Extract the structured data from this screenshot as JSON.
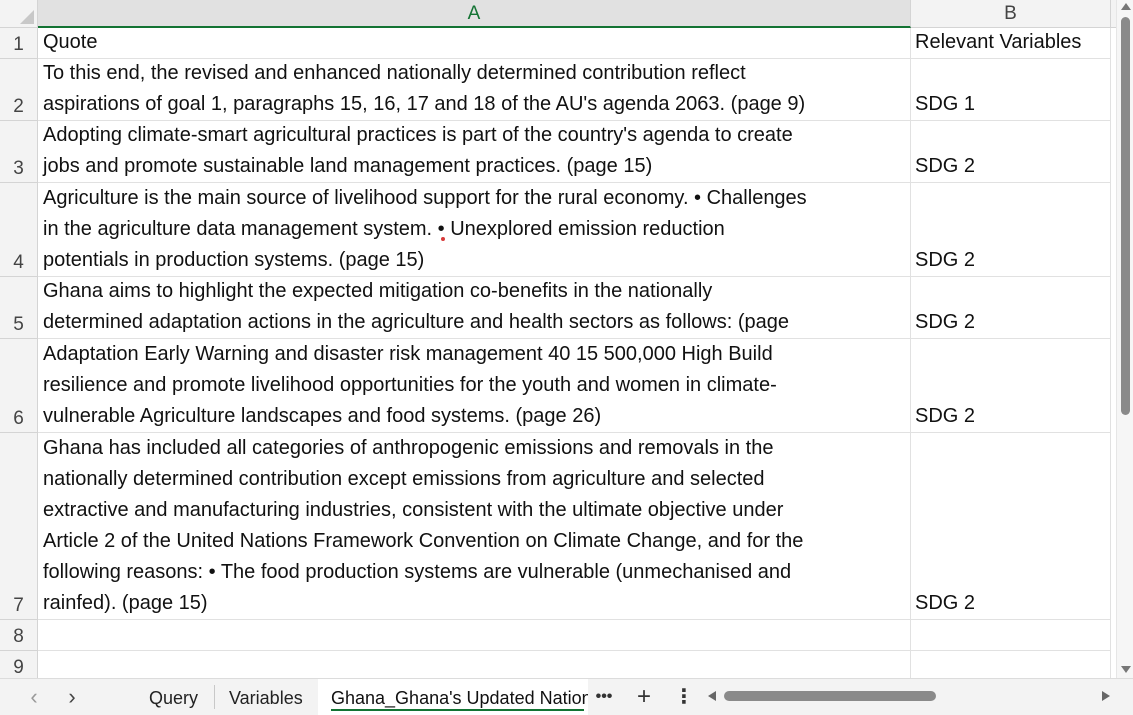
{
  "columns": [
    {
      "id": "A",
      "label": "A"
    },
    {
      "id": "B",
      "label": "B"
    }
  ],
  "rows": [
    {
      "num": "1",
      "a": "Quote",
      "b": "Relevant Variables"
    },
    {
      "num": "2",
      "a": "To this end, the revised and enhanced nationally determined contribution reflect\naspirations of goal 1, paragraphs 15, 16, 17 and 18 of the AU's agenda 2063. (page 9)",
      "b": "SDG 1"
    },
    {
      "num": "3",
      "a": "Adopting climate-smart agricultural practices is part of the country's agenda to create\njobs and promote sustainable land management practices. (page 15)",
      "b": "SDG 2"
    },
    {
      "num": "4",
      "a": "Agriculture is the main source of livelihood support for the rural economy. • Challenges\nin the agriculture data management system. • Unexplored emission reduction\npotentials in production systems. (page 15)",
      "b": "SDG 2"
    },
    {
      "num": "5",
      "a": "Ghana aims to highlight the expected mitigation co-benefits in the nationally\ndetermined adaptation actions in the agriculture and health sectors as follows: (page",
      "b": "SDG 2"
    },
    {
      "num": "6",
      "a": "Adaptation Early Warning and disaster risk management 40 15 500,000 High Build\nresilience and promote livelihood opportunities for the youth and women in climate-\nvulnerable Agriculture landscapes and food systems. (page 26)",
      "b": "SDG 2"
    },
    {
      "num": "7",
      "a": "Ghana has included all categories of anthropogenic emissions and removals in the\nnationally determined contribution except emissions from agriculture and selected\nextractive and manufacturing industries, consistent with the ultimate objective under\nArticle 2 of the United Nations Framework Convention on Climate Change, and for the\nfollowing reasons: • The food production systems are vulnerable (unmechanised and\nrainfed). (page 15)",
      "b": "SDG 2"
    },
    {
      "num": "8",
      "a": "",
      "b": ""
    },
    {
      "num": "9",
      "a": "",
      "b": ""
    }
  ],
  "tabs": {
    "query": "Query",
    "variables": "Variables",
    "active": "Ghana_Ghana's Updated Nation"
  },
  "icons": {
    "prev": "chevron-left-icon",
    "next": "chevron-right-icon",
    "more": "ellipsis-icon",
    "add": "plus-icon",
    "options": "vertical-dots-icon"
  },
  "colors": {
    "accent": "#137333",
    "grid_line": "#e1e1e1",
    "header_bg": "#f3f3f3"
  }
}
